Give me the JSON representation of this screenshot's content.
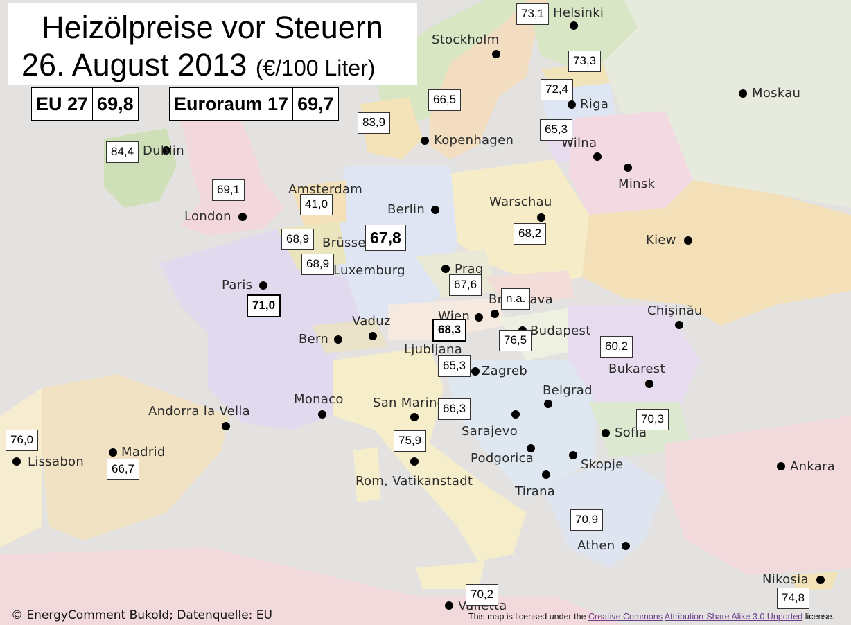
{
  "title": {
    "line1": "Heizölpreise vor Steuern",
    "date": "26. August 2013",
    "unit": "(€/100 Liter)"
  },
  "summary": {
    "eu27": {
      "label": "EU 27",
      "value": "69,8"
    },
    "euroraum": {
      "label": "Euroraum 17",
      "value": "69,7"
    }
  },
  "cities": [
    "Helsinki",
    "Stockholm",
    "Moskau",
    "Riga",
    "Kopenhagen",
    "Wilna",
    "Dublin",
    "Minsk",
    "Amsterdam",
    "Berlin",
    "Warschau",
    "London",
    "Kiew",
    "Brüssel",
    "Prag",
    "Luxemburg",
    "Paris",
    "Bratislava",
    "Chişinău",
    "Wien",
    "Vaduz",
    "Budapest",
    "Bern",
    "Ljubljana",
    "Zagreb",
    "Bukarest",
    "Belgrad",
    "Monaco",
    "San Marino",
    "Andorra la Vella",
    "Sarajevo",
    "Sofia",
    "Podgorica",
    "Madrid",
    "Lissabon",
    "Rom, Vatikanstadt",
    "Skopje",
    "Ankara",
    "Tirana",
    "Athen",
    "Nikosia",
    "Valletta"
  ],
  "prices": [
    "73,1",
    "73,3",
    "66,5",
    "72,4",
    "83,9",
    "65,3",
    "84,4",
    "69,1",
    "41,0",
    "67,8",
    "68,2",
    "68,9",
    "68,9",
    "67,6",
    "n.a.",
    "71,0",
    "68,3",
    "76,5",
    "60,2",
    "65,3",
    "66,3",
    "70,3",
    "76,0",
    "75,9",
    "66,7",
    "70,9",
    "74,8",
    "70,2"
  ],
  "credit": "© EnergyComment Bukold; Datenquelle: EU",
  "license": {
    "prefix": "This map is licensed under the ",
    "link1": "Creative Commons",
    "link2": "Attribution-Share Alike 3.0 Unported",
    "suffix": " license."
  }
}
